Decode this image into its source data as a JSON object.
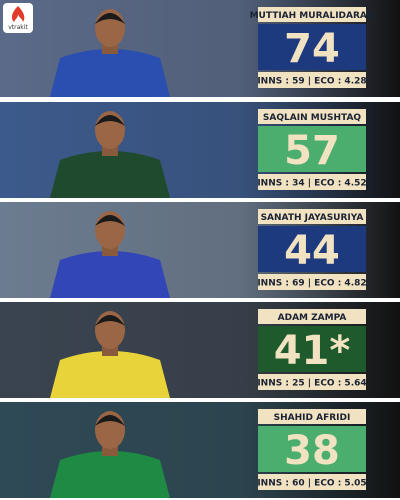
{
  "brand": "vtrakit",
  "players": [
    {
      "name": "MUTTIAH MURALIDARAN",
      "wickets": "74",
      "stats": "INNS : 59 | ECO : 4.28",
      "color": "#1d3a7e",
      "jersey": "#2a4fb0",
      "bg": "#5a6a88"
    },
    {
      "name": "SAQLAIN MUSHTAQ",
      "wickets": "57",
      "stats": "INNS : 34 | ECO : 4.52",
      "color": "#4cae6e",
      "jersey": "#1f4a2e",
      "bg": "#3c5a8c"
    },
    {
      "name": "SANATH JAYASURIYA",
      "wickets": "44",
      "stats": "INNS : 69 | ECO : 4.82",
      "color": "#1d3a7e",
      "jersey": "#3346b8",
      "bg": "#6c7c90"
    },
    {
      "name": "ADAM ZAMPA",
      "wickets": "41*",
      "stats": "INNS : 25 | ECO : 5.64",
      "color": "#1f5a2c",
      "jersey": "#e8d43a",
      "bg": "#3a4450"
    },
    {
      "name": "SHAHID AFRIDI",
      "wickets": "38",
      "stats": "INNS : 60 | ECO : 5.05",
      "color": "#4cae6e",
      "jersey": "#1f8a44",
      "bg": "#2e4a56"
    }
  ]
}
